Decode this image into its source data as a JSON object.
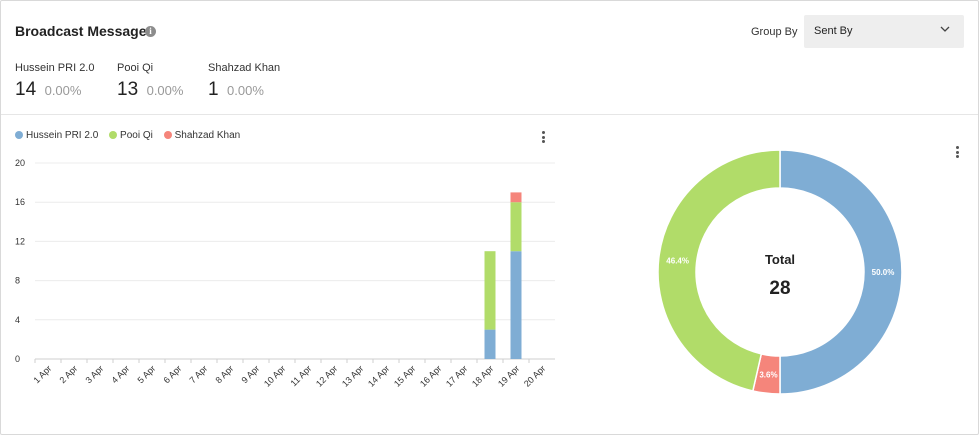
{
  "header": {
    "title": "Broadcast Messages",
    "info_icon": "info-icon",
    "group_by_label": "Group By",
    "group_by_value": "Sent By"
  },
  "stats": [
    {
      "name": "Hussein PRI 2.0",
      "count": "14",
      "pct": "0.00%"
    },
    {
      "name": "Pooi Qi",
      "count": "13",
      "pct": "0.00%"
    },
    {
      "name": "Shahzad Khan",
      "count": "1",
      "pct": "0.00%"
    }
  ],
  "colors": {
    "hussein": "#7fadd4",
    "pooi": "#b1dc69",
    "shahzad": "#f5857b"
  },
  "chart_data": [
    {
      "type": "bar",
      "stacked": true,
      "categories": [
        "1 Apr",
        "2 Apr",
        "3 Apr",
        "4 Apr",
        "5 Apr",
        "6 Apr",
        "7 Apr",
        "8 Apr",
        "9 Apr",
        "10 Apr",
        "11 Apr",
        "12 Apr",
        "13 Apr",
        "14 Apr",
        "15 Apr",
        "16 Apr",
        "17 Apr",
        "18 Apr",
        "19 Apr",
        "20 Apr"
      ],
      "series": [
        {
          "name": "Hussein PRI 2.0",
          "values": [
            0,
            0,
            0,
            0,
            0,
            0,
            0,
            0,
            0,
            0,
            0,
            0,
            0,
            0,
            0,
            0,
            0,
            3,
            11,
            0
          ]
        },
        {
          "name": "Pooi Qi",
          "values": [
            0,
            0,
            0,
            0,
            0,
            0,
            0,
            0,
            0,
            0,
            0,
            0,
            0,
            0,
            0,
            0,
            0,
            8,
            5,
            0
          ]
        },
        {
          "name": "Shahzad Khan",
          "values": [
            0,
            0,
            0,
            0,
            0,
            0,
            0,
            0,
            0,
            0,
            0,
            0,
            0,
            0,
            0,
            0,
            0,
            0,
            1,
            0
          ]
        }
      ],
      "yticks": [
        "0",
        "4",
        "8",
        "12",
        "16",
        "20"
      ],
      "ylim": [
        0,
        20
      ],
      "grid": true,
      "legend": "top-left"
    },
    {
      "type": "pie",
      "donut": true,
      "slices": [
        {
          "name": "Hussein PRI 2.0",
          "value": 14,
          "label": "50.0%"
        },
        {
          "name": "Shahzad Khan",
          "value": 1,
          "label": "3.6%"
        },
        {
          "name": "Pooi Qi",
          "value": 13,
          "label": "46.4%"
        }
      ],
      "center_title": "Total",
      "center_value": "28"
    }
  ]
}
